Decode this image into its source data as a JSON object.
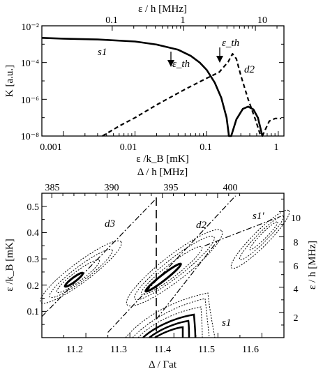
{
  "chart_data": [
    {
      "type": "line",
      "panel": "top",
      "xscale": "log",
      "yscale": "log",
      "xlabel": "ε /k_B [mK]",
      "x2label": "ε / h [MHz]",
      "ylabel": "K [a.u.]",
      "xlim": [
        0.0005,
        1.2
      ],
      "ylim": [
        1e-08,
        0.01
      ],
      "x_ticks": [
        "0.001",
        "0.01",
        "0.1",
        "1"
      ],
      "x2_ticks": [
        "0.1",
        "1",
        "10"
      ],
      "y_ticks": [
        "10⁻⁸",
        "10⁻⁶",
        "10⁻⁴",
        "10⁻²"
      ],
      "series": [
        {
          "name": "s1",
          "style": "solid",
          "x": [
            0.0005,
            0.001,
            0.003,
            0.01,
            0.02,
            0.04,
            0.06,
            0.08,
            0.1,
            0.13,
            0.16,
            0.19,
            0.205,
            0.22,
            0.26,
            0.32,
            0.38,
            0.45,
            0.52,
            0.6
          ],
          "y": [
            0.0022,
            0.002,
            0.0018,
            0.0014,
            0.00095,
            0.0005,
            0.00023,
            0.0001,
            4e-05,
            8e-06,
            1.2e-06,
            1e-07,
            1e-08,
            1e-08,
            8e-08,
            3e-07,
            4e-07,
            2.8e-07,
            1e-07,
            1e-08
          ]
        },
        {
          "name": "d2",
          "style": "dashed",
          "x": [
            0.0035,
            0.006,
            0.01,
            0.02,
            0.05,
            0.1,
            0.15,
            0.2,
            0.23,
            0.26,
            0.3,
            0.38,
            0.48,
            0.56,
            0.6,
            0.65,
            0.75,
            0.9,
            1.1
          ],
          "y": [
            1e-08,
            3.5e-08,
            1e-07,
            5e-07,
            3.5e-06,
            1.4e-05,
            3e-05,
            0.00011,
            0.0003,
            0.00016,
            2e-05,
            1e-06,
            8e-08,
            1.2e-08,
            1e-08,
            2e-08,
            6.5e-08,
            9e-08,
            9e-08
          ]
        }
      ],
      "annotations": [
        {
          "text": "s1",
          "x": 0.0022,
          "y": 0.00055
        },
        {
          "text": "ε_th",
          "x": 0.04,
          "y": 0.00015,
          "arrow": true
        },
        {
          "text": "ε_th",
          "x": 0.17,
          "y": 0.0006,
          "arrow": true
        },
        {
          "text": "d2",
          "x": 0.42,
          "y": 0.00012
        }
      ]
    },
    {
      "type": "contour",
      "panel": "bottom",
      "xlabel": "Δ / Γat",
      "x2label": "Δ / h [MHz]",
      "ylabel": "ε /k_B [mK]",
      "y2label": "ε / h [MHz]",
      "xlim": [
        11.1,
        11.65
      ],
      "ylim": [
        0,
        0.55
      ],
      "x_ticks": [
        "11.2",
        "11.3",
        "11.4",
        "11.5",
        "11.6"
      ],
      "x2_ticks": [
        "385",
        "390",
        "395",
        "400"
      ],
      "y_ticks": [
        "0.1",
        "0.2",
        "0.3",
        "0.4",
        "0.5"
      ],
      "y2_ticks": [
        "2",
        "4",
        "6",
        "8",
        "10"
      ],
      "vertical_line_x": 11.36,
      "threshold_lines": [
        {
          "x": [
            11.1,
            11.36
          ],
          "y": [
            0.08,
            0.53
          ]
        },
        {
          "x": [
            11.25,
            11.54
          ],
          "y": [
            0.02,
            0.54
          ]
        },
        {
          "x": [
            11.36,
            11.5
          ],
          "y": [
            0.07,
            0.37
          ]
        },
        {
          "x": [
            11.47,
            11.64
          ],
          "y": [
            0.35,
            0.46
          ]
        }
      ],
      "annotations": [
        {
          "text": "d3",
          "x": 11.23,
          "y": 0.39
        },
        {
          "text": "d2",
          "x": 11.43,
          "y": 0.41
        },
        {
          "text": "s1'",
          "x": 11.55,
          "y": 0.46
        },
        {
          "text": "s1",
          "x": 11.53,
          "y": 0.04
        }
      ]
    }
  ]
}
